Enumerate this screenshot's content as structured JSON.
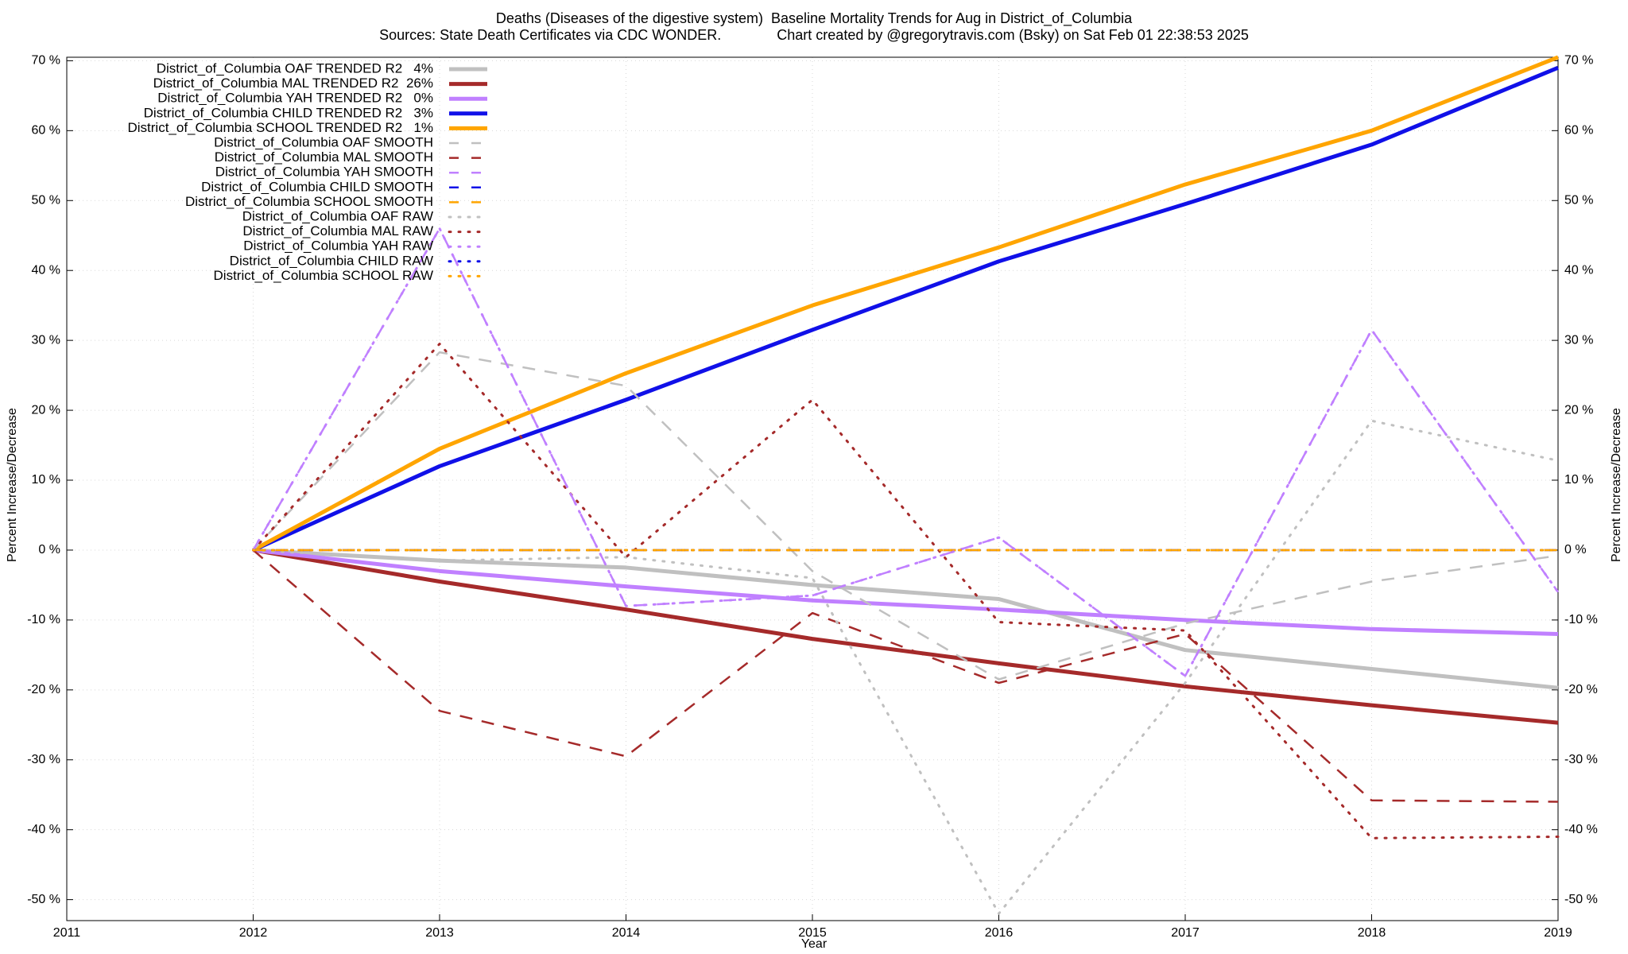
{
  "chart_data": {
    "type": "line",
    "title": "Deaths (Diseases of the digestive system)  Baseline Mortality Trends for Aug in District_of_Columbia",
    "subtitle": "Sources: State Death Certificates via CDC WONDER.              Chart created by @gregorytravis.com (Bsky) on Sat Feb 01 22:38:53 2025",
    "xlabel": "Year",
    "ylabel": "Percent Increase/Decrease",
    "x": [
      2012,
      2013,
      2014,
      2015,
      2016,
      2017,
      2018,
      2019
    ],
    "xlim": [
      2011,
      2019
    ],
    "xticks": [
      2011,
      2012,
      2013,
      2014,
      2015,
      2016,
      2017,
      2018,
      2019
    ],
    "ylim": [
      -53,
      70.5
    ],
    "yticks": [
      {
        "value": -50,
        "label": "-50 %"
      },
      {
        "value": -40,
        "label": "-40 %"
      },
      {
        "value": -30,
        "label": "-30 %"
      },
      {
        "value": -20,
        "label": "-20 %"
      },
      {
        "value": -10,
        "label": "-10 %"
      },
      {
        "value": 0,
        "label": "0 %"
      },
      {
        "value": 10,
        "label": "10 %"
      },
      {
        "value": 20,
        "label": "20 %"
      },
      {
        "value": 30,
        "label": "30 %"
      },
      {
        "value": 40,
        "label": "40 %"
      },
      {
        "value": 50,
        "label": "50 %"
      },
      {
        "value": 60,
        "label": "60 %"
      },
      {
        "value": 70,
        "label": "70 %"
      }
    ],
    "grid": true,
    "legend": "upper left",
    "series": [
      {
        "name": "District_of_Columbia OAF TRENDED R2   4%",
        "color": "#c0c0c0",
        "style": "solid",
        "values": [
          0,
          -1.5,
          -2.5,
          -5,
          -7,
          -14.3,
          -17,
          -19.7
        ]
      },
      {
        "name": "District_of_Columbia MAL TRENDED R2  26%",
        "color": "#a52a2a",
        "style": "solid",
        "values": [
          0,
          -4.5,
          -8.5,
          -12.7,
          -16.2,
          -19.5,
          -22.2,
          -24.7
        ]
      },
      {
        "name": "District_of_Columbia YAH TRENDED R2   0%",
        "color": "#c080ff",
        "style": "solid",
        "values": [
          0,
          -3,
          -5.2,
          -7.2,
          -8.5,
          -10,
          -11.3,
          -12
        ]
      },
      {
        "name": "District_of_Columbia CHILD TRENDED R2   3%",
        "color": "#1010e8",
        "style": "solid",
        "values": [
          0,
          12,
          21.5,
          31.5,
          41.3,
          49.5,
          58,
          69
        ]
      },
      {
        "name": "District_of_Columbia SCHOOL TRENDED R2   1%",
        "color": "#ffa500",
        "style": "solid",
        "values": [
          0,
          14.5,
          25.3,
          35,
          43.3,
          52.3,
          60,
          70.5
        ]
      },
      {
        "name": "District_of_Columbia OAF SMOOTH",
        "color": "#c0c0c0",
        "style": "dashed",
        "values": [
          0,
          28.3,
          23.5,
          -3,
          -18.5,
          -10.5,
          -4.5,
          -0.8
        ]
      },
      {
        "name": "District_of_Columbia MAL SMOOTH",
        "color": "#a52a2a",
        "style": "dashed",
        "values": [
          0,
          -23,
          -29.5,
          -9,
          -19,
          -12,
          -35.8,
          -36
        ]
      },
      {
        "name": "District_of_Columbia YAH SMOOTH",
        "color": "#c080ff",
        "style": "dashed",
        "values": [
          0,
          46,
          -8,
          -6.5,
          1.8,
          -18,
          31.5,
          -6
        ]
      },
      {
        "name": "District_of_Columbia CHILD SMOOTH",
        "color": "#1010e8",
        "style": "dashed",
        "values": [
          0,
          0,
          0,
          0,
          0,
          0,
          0,
          0
        ]
      },
      {
        "name": "District_of_Columbia SCHOOL SMOOTH",
        "color": "#ffa500",
        "style": "dashed",
        "values": [
          0,
          0,
          0,
          0,
          0,
          0,
          0,
          0
        ]
      },
      {
        "name": "District_of_Columbia OAF RAW",
        "color": "#c0c0c0",
        "style": "dotted",
        "values": [
          0,
          -1.5,
          -1,
          -4,
          -52,
          -19,
          18.5,
          12.8
        ]
      },
      {
        "name": "District_of_Columbia MAL RAW",
        "color": "#a52a2a",
        "style": "dotted",
        "values": [
          0,
          29.5,
          -1,
          21.5,
          -10.3,
          -11.5,
          -41.2,
          -41
        ]
      },
      {
        "name": "District_of_Columbia YAH RAW",
        "color": "#c080ff",
        "style": "dotted",
        "values": [
          0,
          46,
          -8,
          -6.5,
          1.8,
          -18,
          31.5,
          -6
        ]
      },
      {
        "name": "District_of_Columbia CHILD RAW",
        "color": "#1010e8",
        "style": "dotted",
        "values": [
          0,
          0,
          0,
          0,
          0,
          0,
          0,
          0
        ]
      },
      {
        "name": "District_of_Columbia SCHOOL RAW",
        "color": "#ffa500",
        "style": "dotted",
        "values": [
          0,
          0,
          0,
          0,
          0,
          0,
          0,
          0
        ]
      }
    ]
  }
}
